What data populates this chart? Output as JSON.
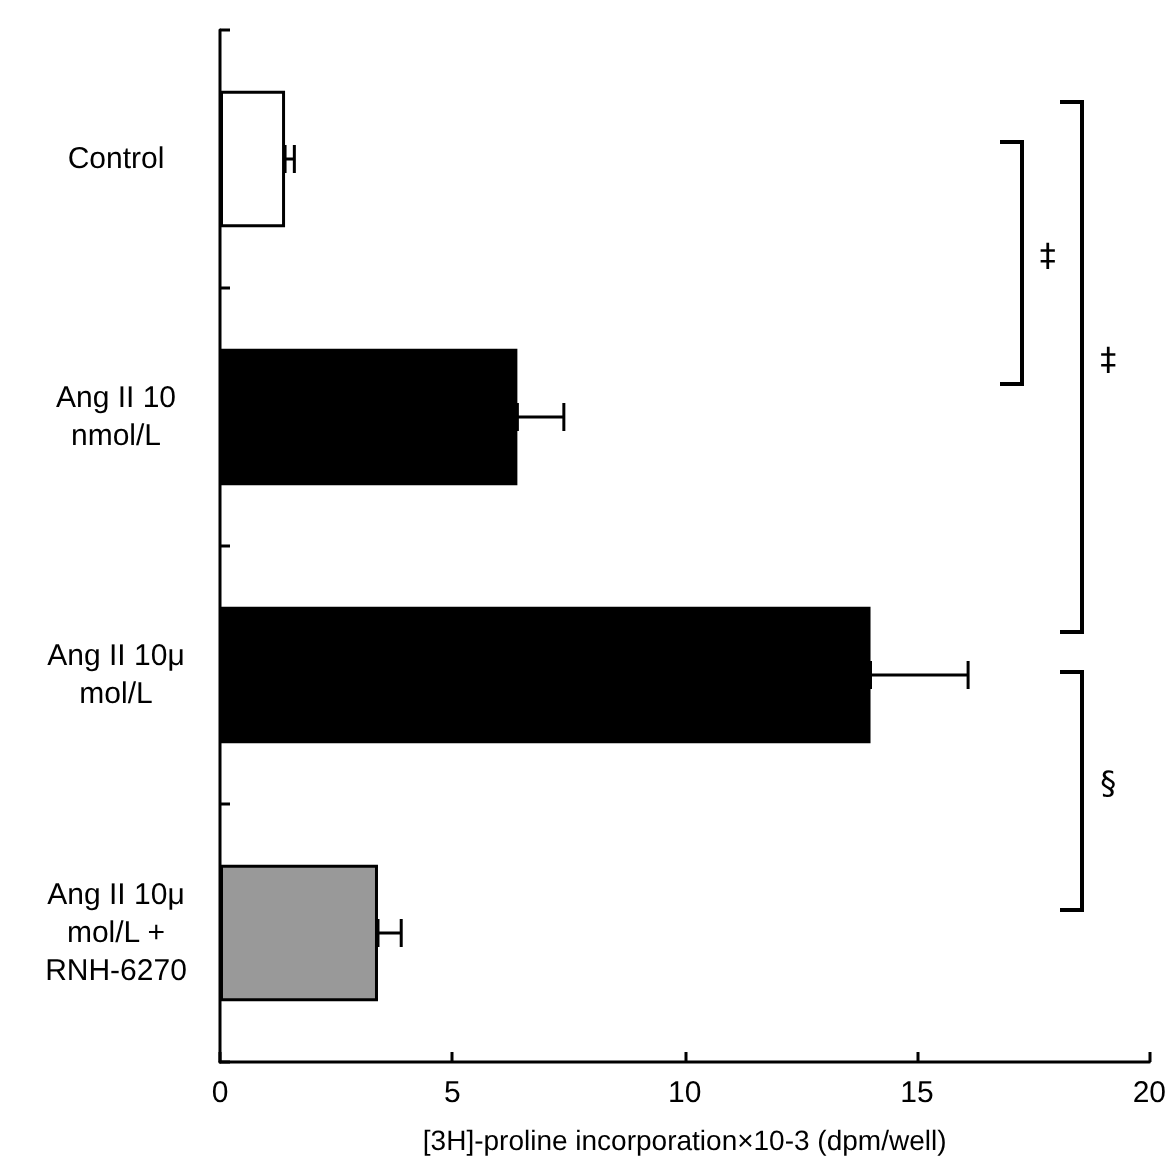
{
  "chart_data": {
    "type": "bar",
    "orientation": "horizontal",
    "xlabel": "[3H]-proline incorporation×10-3 (dpm/well)",
    "categories": [
      "Control",
      "Ang II 10\nnmol/L",
      "Ang II 10μ\nmol/L",
      "Ang II 10μ\nmol/L +\nRNH-6270"
    ],
    "values": [
      1.4,
      6.4,
      14.0,
      3.4
    ],
    "colors": [
      "#ffffff",
      "#000000",
      "#000000",
      "#999999"
    ],
    "errors": [
      [
        1.4,
        1.6
      ],
      [
        6.4,
        7.4
      ],
      [
        14.0,
        16.1
      ],
      [
        3.4,
        3.9
      ]
    ],
    "xlim": [
      0,
      20
    ],
    "xticks": [
      0,
      5,
      10,
      15,
      20
    ],
    "grid": false,
    "annotations": [
      "‡",
      "‡",
      "§"
    ]
  }
}
